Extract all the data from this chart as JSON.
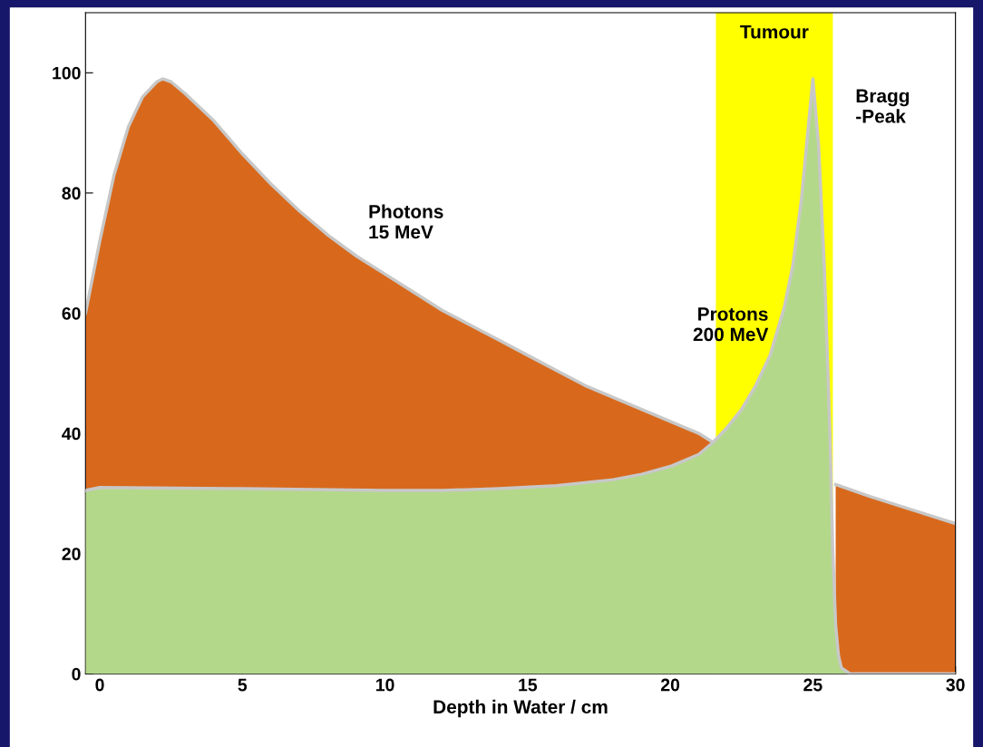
{
  "chart_data": {
    "type": "area",
    "xlabel": "Depth in Water / cm",
    "series": [
      {
        "name": "Photons\n15 MeV",
        "color": "#d8691c",
        "x": [
          -0.5,
          0,
          0.5,
          1,
          1.5,
          2,
          2.2,
          2.5,
          3,
          4,
          5,
          6,
          7,
          8,
          9,
          10,
          11,
          12,
          13,
          14,
          15,
          16,
          17,
          18,
          19,
          20,
          21,
          21.5,
          21.6,
          25.7,
          25.8,
          27,
          28,
          29,
          30
        ],
        "values": [
          60,
          72,
          83,
          91,
          96,
          98.5,
          99,
          98.5,
          96.5,
          92,
          86.5,
          81.5,
          77,
          73,
          69.5,
          66.5,
          63.5,
          60.5,
          58,
          55.5,
          53,
          50.5,
          48,
          46,
          44,
          42,
          40,
          38.5,
          null,
          null,
          31.5,
          29.5,
          28,
          26.5,
          25
        ]
      },
      {
        "name": "Protons\n200 MeV",
        "color": "#b3d88a",
        "x": [
          -0.5,
          0,
          5,
          10,
          12,
          14,
          16,
          18,
          19,
          20,
          21,
          21.5,
          22,
          22.5,
          23,
          23.5,
          24,
          24.3,
          24.6,
          24.8,
          25,
          25.2,
          25.4,
          25.6,
          25.7,
          25.8,
          25.9,
          26,
          26.3,
          30
        ],
        "values": [
          30.5,
          31,
          30.8,
          30.5,
          30.5,
          30.8,
          31.3,
          32.3,
          33.2,
          34.5,
          36.5,
          38.5,
          41,
          44,
          48,
          53,
          61,
          68,
          79,
          89,
          99,
          88,
          68,
          40,
          20,
          8,
          3,
          1,
          0,
          0
        ]
      }
    ],
    "annotations": [
      "Bragg\n-Peak"
    ],
    "bands": [
      {
        "axis": "x",
        "from": 21.6,
        "to": 25.7,
        "label": "Tumour",
        "color": "#ffff00"
      }
    ],
    "xlim": [
      -0.5,
      30
    ],
    "ylim": [
      0,
      110
    ],
    "xticks": [
      0,
      5,
      10,
      15,
      20,
      25,
      30
    ],
    "yticks": [
      0,
      20,
      40,
      60,
      80,
      100
    ],
    "grid": false,
    "legend": false
  }
}
